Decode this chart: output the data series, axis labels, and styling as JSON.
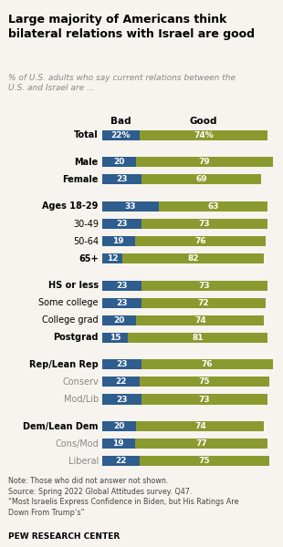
{
  "title": "Large majority of Americans think\nbilateral relations with Israel are good",
  "subtitle": "% of U.S. adults who say current relations between the\nU.S. and Israel are ...",
  "categories": [
    "Total",
    "Male",
    "Female",
    "Ages 18-29",
    "30-49",
    "50-64",
    "65+",
    "HS or less",
    "Some college",
    "College grad",
    "Postgrad",
    "Rep/Lean Rep",
    "Conserv",
    "Mod/Lib",
    "Dem/Lean Dem",
    "Cons/Mod",
    "Liberal"
  ],
  "bad_values": [
    22,
    20,
    23,
    33,
    23,
    19,
    12,
    23,
    23,
    20,
    15,
    23,
    22,
    23,
    20,
    19,
    22
  ],
  "good_values": [
    74,
    79,
    69,
    63,
    73,
    76,
    82,
    73,
    72,
    74,
    81,
    76,
    75,
    73,
    74,
    77,
    75
  ],
  "bad_color": "#2E5D8E",
  "good_color": "#8B9A2E",
  "bg_color": "#F7F4EF",
  "bold_labels": [
    "Total",
    "Male",
    "Female",
    "Ages 18-29",
    "65+",
    "HS or less",
    "Postgrad",
    "Rep/Lean Rep",
    "Dem/Lean Dem"
  ],
  "sub_labels": [
    "Conserv",
    "Mod/Lib",
    "Cons/Mod",
    "Liberal"
  ],
  "gap_after_idx": [
    0,
    2,
    6,
    10,
    13
  ],
  "note_line1": "Note: Those who did not answer not shown.",
  "note_line2": "Source: Spring 2022 Global Attitudes survey. Q47.",
  "note_line3": "“Most Israelis Express Confidence in Biden, but His Ratings Are",
  "note_line4": "Down From Trump’s”",
  "footer": "PEW RESEARCH CENTER",
  "total_pct_symbol": true,
  "bar_max": 100,
  "bad_header": "Bad",
  "good_header": "Good"
}
